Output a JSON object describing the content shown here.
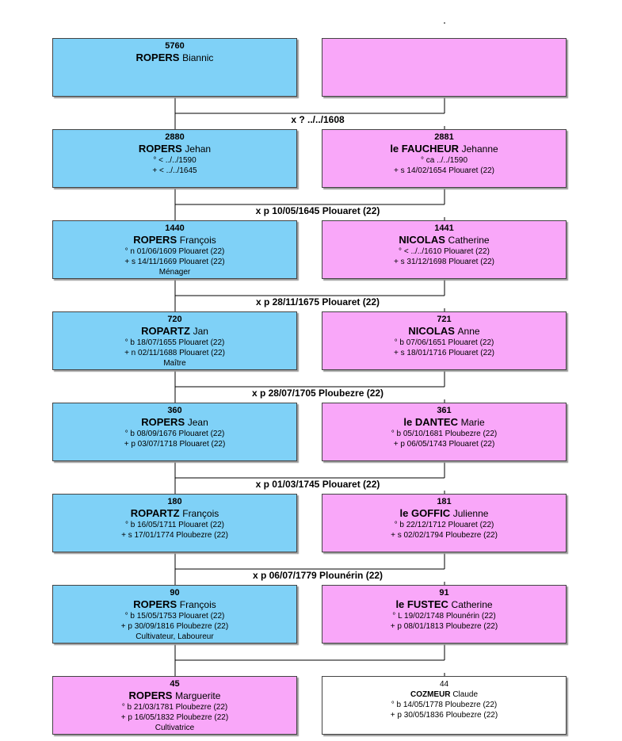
{
  "generations": [
    {
      "husband": {
        "num": "5760",
        "surname": "ROPERS",
        "given": "Biannic",
        "events": [],
        "occupation": ""
      },
      "wife": {
        "num": "",
        "surname": "",
        "given": "",
        "events": [],
        "occupation": ""
      },
      "marriage": ""
    },
    {
      "husband": {
        "num": "2880",
        "surname": "ROPERS",
        "given": "Jehan",
        "events": [
          "° < ../../1590",
          "+ < ../../1645"
        ],
        "occupation": ""
      },
      "wife": {
        "num": "2881",
        "surname": "le FAUCHEUR",
        "given": "Jehanne",
        "events": [
          "° ca ../../1590",
          "+ s 14/02/1654 Plouaret (22)"
        ],
        "occupation": ""
      },
      "marriage": "x ? ../../1608"
    },
    {
      "husband": {
        "num": "1440",
        "surname": "ROPERS",
        "given": "François",
        "events": [
          "° n 01/06/1609 Plouaret (22)",
          "+ s 14/11/1669 Plouaret (22)"
        ],
        "occupation": "Ménager"
      },
      "wife": {
        "num": "1441",
        "surname": "NICOLAS",
        "given": "Catherine",
        "events": [
          "° < ../../1610 Plouaret (22)",
          "+ s 31/12/1698 Plouaret (22)"
        ],
        "occupation": ""
      },
      "marriage": "x p 10/05/1645 Plouaret (22)"
    },
    {
      "husband": {
        "num": "720",
        "surname": "ROPARTZ",
        "given": "Jan",
        "events": [
          "° b 18/07/1655 Plouaret (22)",
          "+ n 02/11/1688 Plouaret (22)"
        ],
        "occupation": "Maître"
      },
      "wife": {
        "num": "721",
        "surname": "NICOLAS",
        "given": "Anne",
        "events": [
          "° b 07/06/1651 Plouaret (22)",
          "+ s 18/01/1716 Plouaret (22)"
        ],
        "occupation": ""
      },
      "marriage": "x p 28/11/1675 Plouaret (22)"
    },
    {
      "husband": {
        "num": "360",
        "surname": "ROPERS",
        "given": "Jean",
        "events": [
          "° b 08/09/1676 Plouaret (22)",
          "+ p 03/07/1718 Plouaret (22)"
        ],
        "occupation": ""
      },
      "wife": {
        "num": "361",
        "surname": "le DANTEC",
        "given": "Marie",
        "events": [
          "° b 05/10/1681 Ploubezre (22)",
          "+ p 06/05/1743 Plouaret (22)"
        ],
        "occupation": ""
      },
      "marriage": "x p 28/07/1705 Ploubezre (22)"
    },
    {
      "husband": {
        "num": "180",
        "surname": "ROPARTZ",
        "given": "François",
        "events": [
          "° b 16/05/1711 Plouaret (22)",
          "+ s 17/01/1774 Ploubezre (22)"
        ],
        "occupation": ""
      },
      "wife": {
        "num": "181",
        "surname": "le GOFFIC",
        "given": "Julienne",
        "events": [
          "° b 22/12/1712 Plouaret (22)",
          "+ s 02/02/1794 Ploubezre (22)"
        ],
        "occupation": ""
      },
      "marriage": "x p 01/03/1745 Plouaret (22)"
    },
    {
      "husband": {
        "num": "90",
        "surname": "ROPERS",
        "given": "François",
        "events": [
          "° b 15/05/1753 Plouaret (22)",
          "+ p 30/09/1816 Ploubezre (22)"
        ],
        "occupation": "Cultivateur, Laboureur"
      },
      "wife": {
        "num": "91",
        "surname": "le FUSTEC",
        "given": "Catherine",
        "events": [
          "° L 19/02/1748 Plounérin (22)",
          "+ p 08/01/1813 Ploubezre (22)"
        ],
        "occupation": ""
      },
      "marriage": "x p 06/07/1779 Plounérin (22)"
    },
    {
      "husband": {
        "num": "45",
        "surname": "ROPERS",
        "given": "Marguerite",
        "events": [
          "° b 21/03/1781 Ploubezre (22)",
          "+ p 16/05/1832 Ploubezre (22)"
        ],
        "occupation": "Cultivatrice"
      },
      "wife": {
        "num": "44",
        "surname": "COZMEUR",
        "given": "Claude",
        "events": [
          "° b 14/05/1778 Ploubezre (22)",
          "+ p 30/05/1836 Ploubezre (22)"
        ],
        "occupation": ""
      },
      "marriage": ""
    }
  ],
  "colors": {
    "male": "#7fd1f7",
    "female": "#f9a7f9",
    "spouse_other": "#ffffff",
    "line": "#000000"
  }
}
